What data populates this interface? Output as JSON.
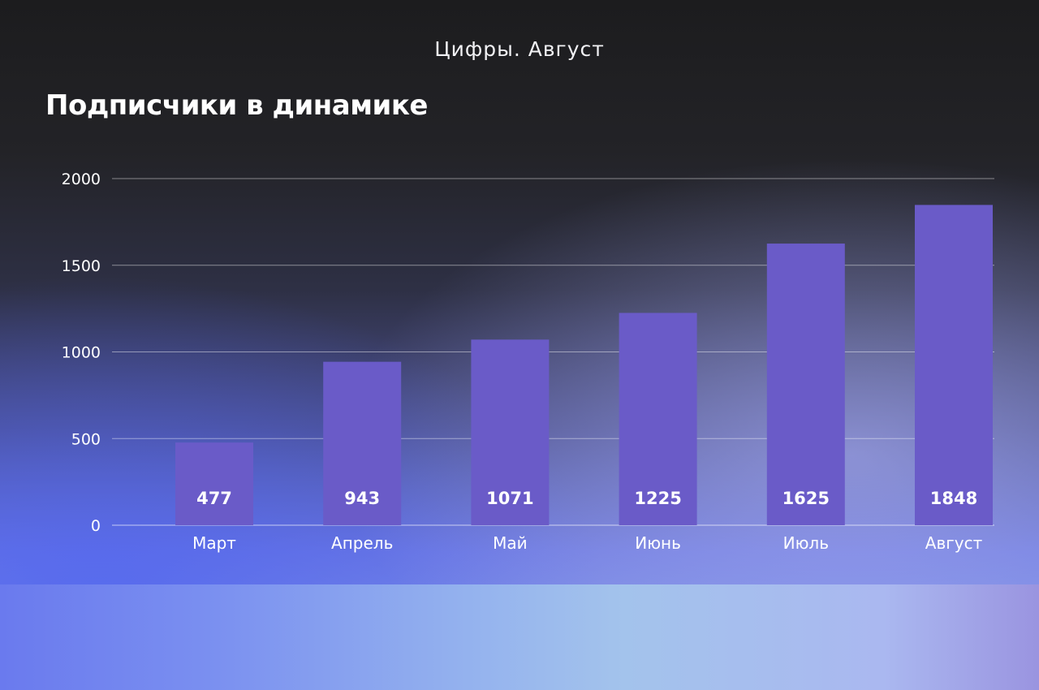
{
  "header": {
    "subtitle": "Цифры. Август",
    "title": "Подписчики в динамике"
  },
  "chart_data": {
    "type": "bar",
    "categories": [
      "Март",
      "Апрель",
      "Май",
      "Июнь",
      "Июль",
      "Август"
    ],
    "values": [
      477,
      943,
      1071,
      1225,
      1625,
      1848
    ],
    "value_labels": [
      "477",
      "943",
      "1071",
      "1225",
      "1625",
      "1848"
    ],
    "yticks": [
      "0",
      "500",
      "1000",
      "1500",
      "2000"
    ],
    "ylim": [
      0,
      2000
    ],
    "grid": true,
    "legend": "none",
    "colors": {
      "bar": "#6a5bc8",
      "grid": "#ffffff"
    }
  }
}
